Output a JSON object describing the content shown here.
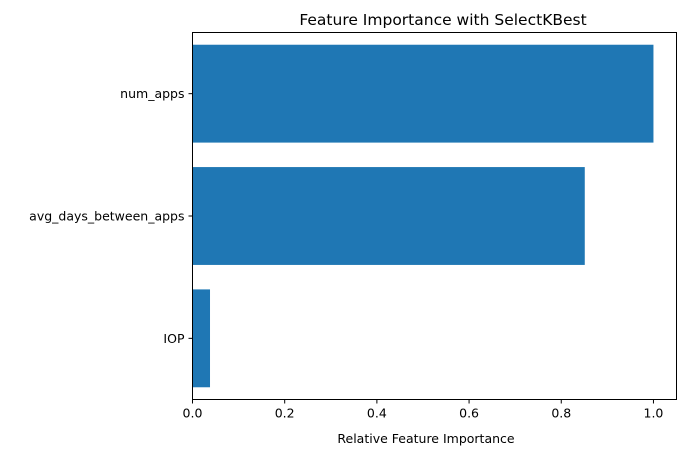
{
  "chart_data": {
    "type": "bar",
    "orientation": "horizontal",
    "title": "Feature Importance with SelectKBest",
    "xlabel": "Relative Feature Importance",
    "ylabel": "",
    "categories": [
      "IOP",
      "avg_days_between_apps",
      "num_apps"
    ],
    "values": [
      0.038,
      0.851,
      1.0
    ],
    "xlim": [
      0.0,
      1.05
    ],
    "xticks": [
      "0.0",
      "0.2",
      "0.4",
      "0.6",
      "0.8",
      "1.0"
    ],
    "bar_color": "#1f77b4",
    "grid": false,
    "legend": "none"
  }
}
